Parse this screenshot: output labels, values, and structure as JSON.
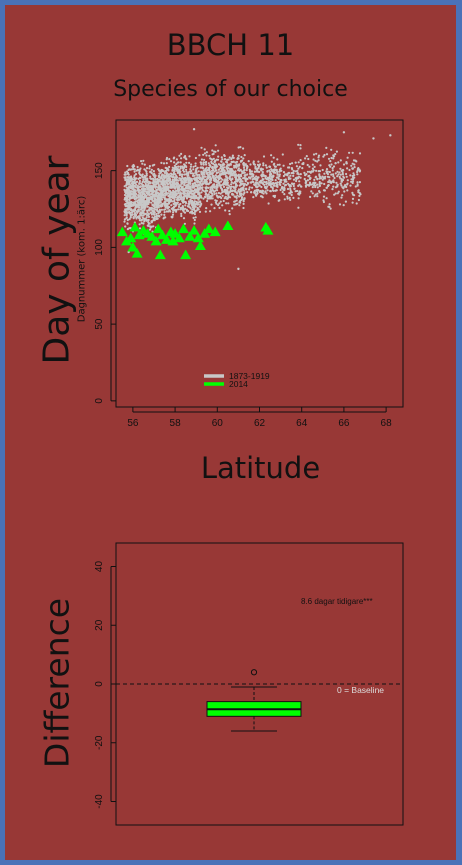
{
  "panel": {
    "title": "BBCH 11",
    "subtitle": "Species of our choice",
    "ylabel_big": "Day of year",
    "xlabel_big": "Latitude",
    "ylabel2_big": "Difference"
  },
  "colors": {
    "background": "#983836",
    "border": "#4a72b8",
    "historic": "#c8c8c8",
    "recent": "#00ff00"
  },
  "chart_data": [
    {
      "type": "scatter",
      "ylabel": "Dagnummer (kom. 1:ärc)",
      "xlim": [
        55.2,
        68.8
      ],
      "ylim": [
        -4,
        183
      ],
      "xticks": [
        56,
        58,
        60,
        62,
        64,
        66,
        68
      ],
      "yticks": [
        0,
        50,
        100,
        150
      ],
      "legend": {
        "position": "bottom-center",
        "entries": [
          "1873-1919",
          "2014"
        ]
      },
      "series": [
        {
          "name": "1873-1919",
          "marker": "dot",
          "color": "#c8c8c8",
          "groups": [
            {
              "x": [
                55.6,
                57.3
              ],
              "y": [
                105,
                160
              ],
              "n": 900
            },
            {
              "x": [
                57.3,
                59.2
              ],
              "y": [
                112,
                165
              ],
              "n": 850
            },
            {
              "x": [
                59.2,
                61.3
              ],
              "y": [
                118,
                170
              ],
              "n": 650
            },
            {
              "x": [
                61.3,
                63.8
              ],
              "y": [
                125,
                163
              ],
              "n": 380
            },
            {
              "x": [
                63.8,
                66.8
              ],
              "y": [
                122,
                170
              ],
              "n": 300
            }
          ],
          "outliers": [
            {
              "x": 58.9,
              "y": 177
            },
            {
              "x": 61.0,
              "y": 86
            },
            {
              "x": 67.4,
              "y": 171
            },
            {
              "x": 68.2,
              "y": 173
            },
            {
              "x": 66.0,
              "y": 175
            },
            {
              "x": 55.8,
              "y": 97
            }
          ]
        },
        {
          "name": "2014",
          "marker": "triangle",
          "color": "#00ff00",
          "points": [
            {
              "x": 55.5,
              "y": 110
            },
            {
              "x": 55.7,
              "y": 104
            },
            {
              "x": 55.9,
              "y": 106
            },
            {
              "x": 56.0,
              "y": 100
            },
            {
              "x": 56.1,
              "y": 113
            },
            {
              "x": 56.2,
              "y": 96
            },
            {
              "x": 56.3,
              "y": 108
            },
            {
              "x": 56.5,
              "y": 111
            },
            {
              "x": 56.7,
              "y": 109
            },
            {
              "x": 56.9,
              "y": 107
            },
            {
              "x": 57.1,
              "y": 104
            },
            {
              "x": 57.2,
              "y": 112
            },
            {
              "x": 57.3,
              "y": 95
            },
            {
              "x": 57.4,
              "y": 108
            },
            {
              "x": 57.6,
              "y": 105
            },
            {
              "x": 57.8,
              "y": 110
            },
            {
              "x": 57.9,
              "y": 104
            },
            {
              "x": 58.0,
              "y": 109
            },
            {
              "x": 58.2,
              "y": 106
            },
            {
              "x": 58.4,
              "y": 112
            },
            {
              "x": 58.5,
              "y": 95
            },
            {
              "x": 58.7,
              "y": 107
            },
            {
              "x": 58.9,
              "y": 111
            },
            {
              "x": 59.1,
              "y": 106
            },
            {
              "x": 59.2,
              "y": 101
            },
            {
              "x": 59.4,
              "y": 109
            },
            {
              "x": 59.6,
              "y": 112
            },
            {
              "x": 59.9,
              "y": 110
            },
            {
              "x": 60.5,
              "y": 114
            },
            {
              "x": 62.3,
              "y": 113
            },
            {
              "x": 62.4,
              "y": 111
            }
          ]
        }
      ]
    },
    {
      "type": "box",
      "ylim": [
        -48,
        48
      ],
      "yticks": [
        -40,
        -20,
        0,
        20,
        40
      ],
      "box": {
        "whisker_low": -16,
        "q1": -11,
        "median": -8.6,
        "q3": -6,
        "whisker_high": -1,
        "outliers": [
          4
        ]
      },
      "baseline": {
        "value": 0,
        "label": "0 = Baseline"
      },
      "annotation": "8.6 dagar tidigare***"
    }
  ]
}
